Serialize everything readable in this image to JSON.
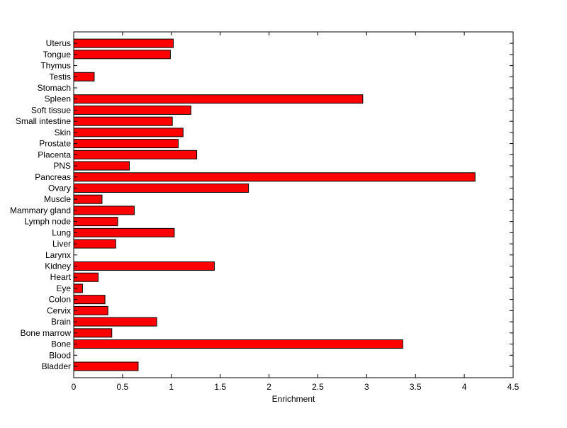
{
  "chart_data": {
    "type": "bar",
    "orientation": "horizontal",
    "title": "",
    "xlabel": "Enrichment",
    "ylabel": "",
    "xlim": [
      0,
      4.5
    ],
    "xticks": [
      "0",
      "0.5",
      "1",
      "1.5",
      "2",
      "2.5",
      "3",
      "3.5",
      "4",
      "4.5"
    ],
    "grid": false,
    "legend": "none",
    "bar_color": "#ff0000",
    "bar_edge_color": "#000000",
    "categories": [
      "Bladder",
      "Blood",
      "Bone",
      "Bone marrow",
      "Brain",
      "Cervix",
      "Colon",
      "Eye",
      "Heart",
      "Kidney",
      "Larynx",
      "Liver",
      "Lung",
      "Lymph node",
      "Mammary gland",
      "Muscle",
      "Ovary",
      "Pancreas",
      "PNS",
      "Placenta",
      "Prostate",
      "Skin",
      "Small intestine",
      "Soft tissue",
      "Spleen",
      "Stomach",
      "Testis",
      "Thymus",
      "Tongue",
      "Uterus"
    ],
    "values": [
      0.66,
      0.0,
      3.37,
      0.39,
      0.85,
      0.35,
      0.32,
      0.09,
      0.25,
      1.44,
      0.0,
      0.43,
      1.03,
      0.45,
      0.62,
      0.29,
      1.79,
      4.11,
      0.57,
      1.26,
      1.07,
      1.12,
      1.01,
      1.2,
      2.96,
      0.0,
      0.21,
      0.0,
      0.99,
      1.02
    ]
  }
}
